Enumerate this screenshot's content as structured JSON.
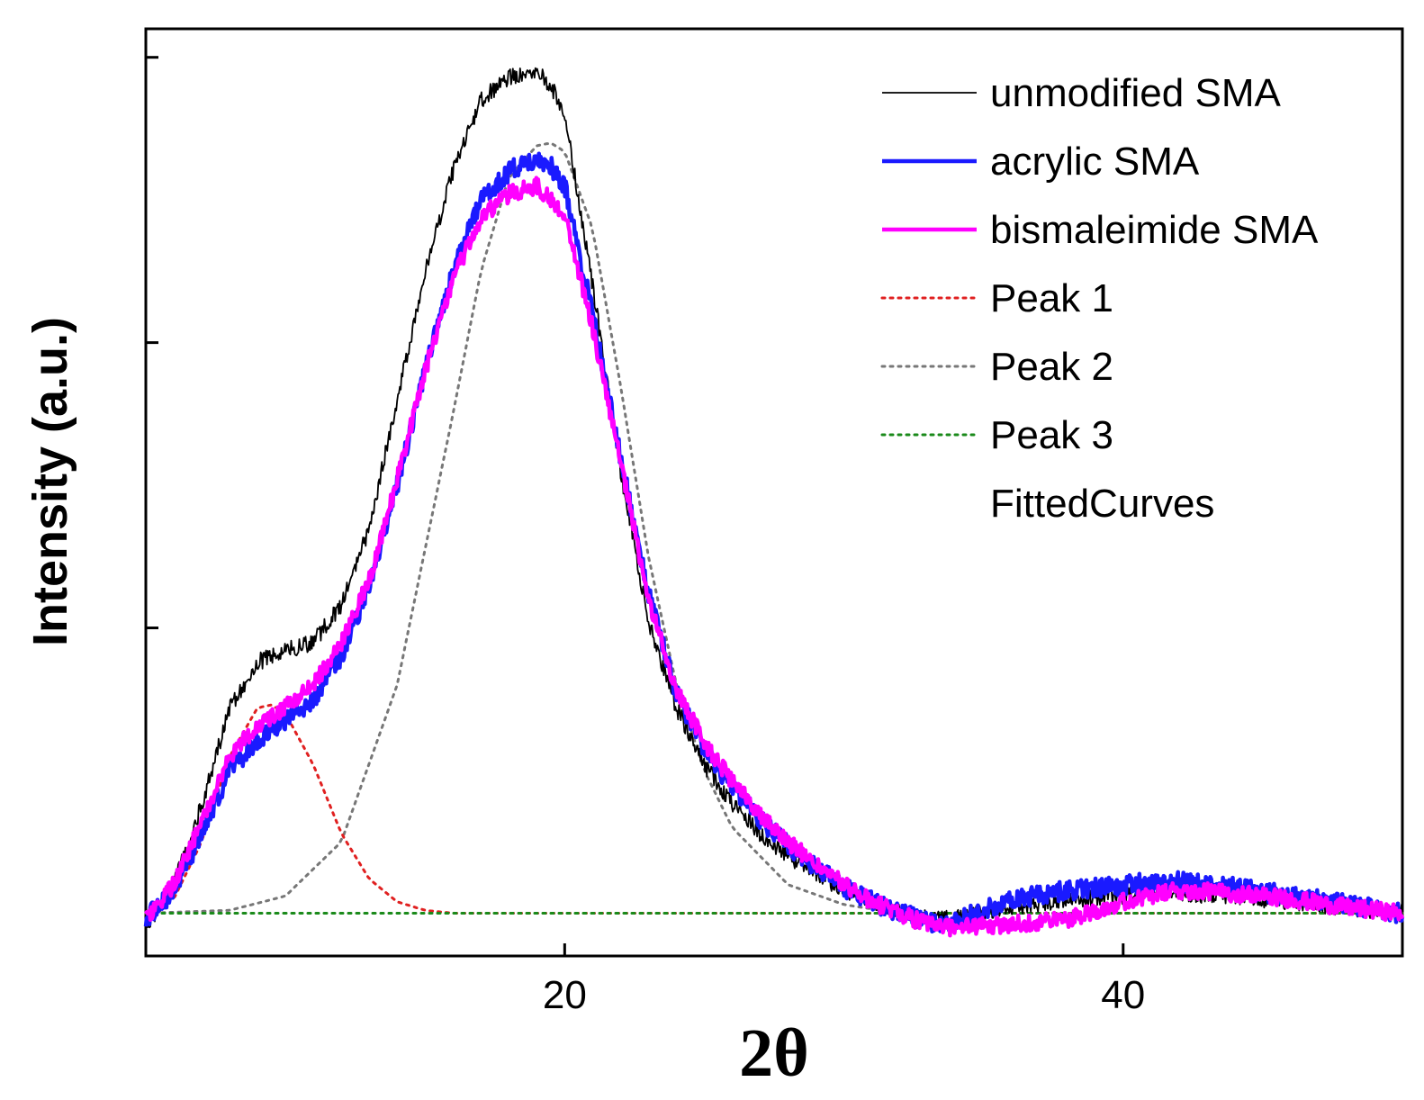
{
  "chart_data": {
    "type": "line",
    "title": "",
    "xlabel": "2θ",
    "ylabel": "Intensity (a.u.)",
    "xlim": [
      5,
      50
    ],
    "ylim": [
      -0.15,
      3.1
    ],
    "x_ticks": [
      20,
      40
    ],
    "x_tick_labels": [
      "20",
      "40"
    ],
    "y_ticks": [
      1,
      2,
      3
    ],
    "y_tick_labels": [
      "",
      "",
      ""
    ],
    "grid": false,
    "legend_position": "top-right",
    "legend": [
      {
        "label": "unmodified SMA",
        "color": "#000000",
        "style": "solid",
        "width": "thin"
      },
      {
        "label": "acrylic SMA",
        "color": "#1a1aff",
        "style": "solid",
        "width": "thick"
      },
      {
        "label": "bismaleimide SMA",
        "color": "#ff00ff",
        "style": "solid",
        "width": "thick"
      },
      {
        "label": "Peak 1",
        "color": "#e02020",
        "style": "dotted",
        "width": "medium"
      },
      {
        "label": "Peak 2",
        "color": "#777777",
        "style": "dotted",
        "width": "medium"
      },
      {
        "label": "Peak 3",
        "color": "#1a8a1a",
        "style": "dotted",
        "width": "medium"
      },
      {
        "label": "FittedCurves",
        "color": "",
        "style": "none",
        "width": "none"
      }
    ],
    "series": [
      {
        "name": "unmodified SMA",
        "color": "#000000",
        "noise": 0.03,
        "x": [
          5,
          6,
          7,
          8,
          9,
          10,
          11,
          12,
          13,
          14,
          15,
          16,
          17,
          18,
          19,
          19.5,
          20,
          21,
          22,
          23,
          24,
          25,
          26,
          27,
          28,
          29,
          30,
          31,
          32,
          33,
          34,
          36,
          38,
          40,
          42,
          44,
          46,
          48,
          50
        ],
        "y": [
          -0.05,
          0.1,
          0.38,
          0.72,
          0.88,
          0.92,
          0.95,
          1.08,
          1.35,
          1.8,
          2.25,
          2.6,
          2.85,
          2.93,
          2.96,
          2.9,
          2.8,
          2.2,
          1.55,
          1.02,
          0.72,
          0.52,
          0.38,
          0.28,
          0.2,
          0.14,
          0.08,
          0.04,
          0.0,
          -0.02,
          -0.02,
          0.02,
          0.05,
          0.06,
          0.07,
          0.06,
          0.04,
          0.02,
          0.0
        ]
      },
      {
        "name": "acrylic SMA",
        "color": "#1a1aff",
        "noise": 0.035,
        "x": [
          5,
          6,
          7,
          8,
          9,
          10,
          11,
          12,
          13,
          14,
          15,
          16,
          17,
          18,
          19,
          19.5,
          20,
          21,
          22,
          23,
          24,
          25,
          26,
          27,
          28,
          29,
          30,
          31,
          32,
          33,
          34,
          36,
          38,
          40,
          42,
          44,
          46,
          48,
          50
        ],
        "y": [
          -0.02,
          0.08,
          0.28,
          0.5,
          0.6,
          0.67,
          0.75,
          0.9,
          1.15,
          1.5,
          1.9,
          2.25,
          2.5,
          2.6,
          2.65,
          2.62,
          2.55,
          2.1,
          1.6,
          1.12,
          0.77,
          0.58,
          0.44,
          0.33,
          0.24,
          0.16,
          0.09,
          0.04,
          0.0,
          -0.03,
          -0.03,
          0.05,
          0.08,
          0.1,
          0.11,
          0.09,
          0.06,
          0.03,
          0.0
        ]
      },
      {
        "name": "bismaleimide SMA",
        "color": "#ff00ff",
        "noise": 0.03,
        "x": [
          5,
          6,
          7,
          8,
          9,
          10,
          11,
          12,
          13,
          14,
          15,
          16,
          17,
          18,
          19,
          19.5,
          20,
          21,
          22,
          23,
          24,
          25,
          26,
          27,
          28,
          29,
          30,
          31,
          32,
          33,
          34,
          36,
          38,
          40,
          42,
          44,
          46,
          48,
          50
        ],
        "y": [
          -0.03,
          0.1,
          0.32,
          0.55,
          0.66,
          0.72,
          0.8,
          0.95,
          1.17,
          1.52,
          1.9,
          2.22,
          2.44,
          2.52,
          2.55,
          2.5,
          2.45,
          2.05,
          1.58,
          1.1,
          0.78,
          0.6,
          0.46,
          0.35,
          0.25,
          0.17,
          0.1,
          0.04,
          0.0,
          -0.04,
          -0.05,
          -0.04,
          -0.02,
          0.04,
          0.08,
          0.07,
          0.05,
          0.02,
          0.0
        ]
      },
      {
        "name": "Peak 1",
        "color": "#e02020",
        "style": "dotted",
        "x": [
          5,
          6,
          7,
          8,
          9,
          9.5,
          10,
          11,
          12,
          13,
          14,
          15,
          16,
          17,
          18,
          20,
          25,
          30,
          35,
          40,
          45,
          50
        ],
        "y": [
          0.0,
          0.05,
          0.25,
          0.55,
          0.72,
          0.73,
          0.7,
          0.52,
          0.28,
          0.12,
          0.04,
          0.01,
          0.0,
          0.0,
          0.0,
          0.0,
          0.0,
          0.0,
          0.0,
          0.0,
          0.0,
          0.0
        ]
      },
      {
        "name": "Peak 2",
        "color": "#777777",
        "style": "dotted",
        "x": [
          5,
          8,
          10,
          12,
          14,
          16,
          17,
          18,
          19,
          19.5,
          20,
          21,
          22,
          23,
          24,
          25,
          26,
          28,
          30,
          32,
          35,
          40,
          45,
          50
        ],
        "y": [
          0.0,
          0.01,
          0.06,
          0.25,
          0.8,
          1.75,
          2.25,
          2.58,
          2.69,
          2.7,
          2.67,
          2.4,
          1.85,
          1.25,
          0.8,
          0.5,
          0.3,
          0.1,
          0.03,
          0.0,
          0.0,
          0.0,
          0.0,
          0.0
        ]
      },
      {
        "name": "Peak 3",
        "color": "#1a8a1a",
        "style": "dotted",
        "x": [
          5,
          50
        ],
        "y": [
          0.0,
          0.0
        ]
      }
    ]
  }
}
